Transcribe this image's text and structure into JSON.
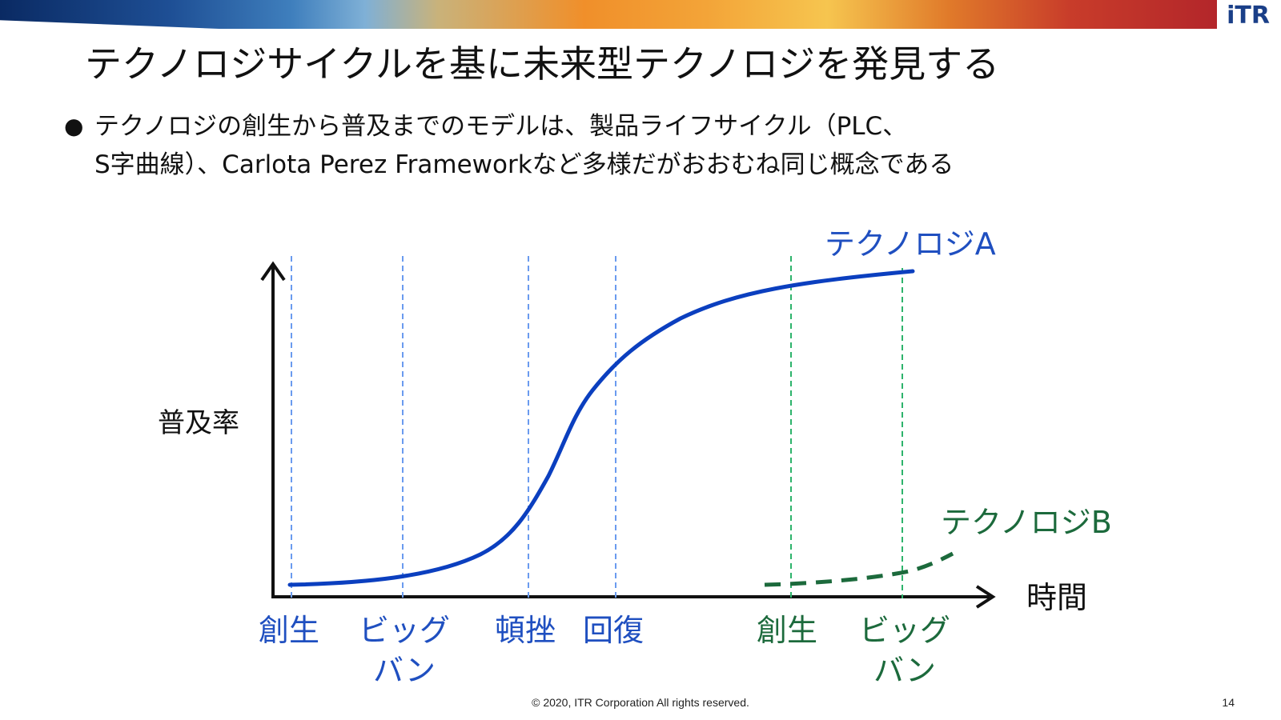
{
  "slide": {
    "title": "テクノロジサイクルを基に未来型テクノロジを発見する",
    "bullet_line1": "テクノロジの創生から普及までのモデルは、製品ライフサイクル（PLC、",
    "bullet_line2": "S字曲線）、Carlota Perez Frameworkなど多様だがおおむね同じ概念である",
    "logo": "iTR",
    "footer": "© 2020, ITR Corporation All rights reserved.",
    "page_number": "14"
  },
  "diagram": {
    "y_axis_label": "普及率",
    "x_axis_label": "時間",
    "curve_a_label": "テクノロジA",
    "curve_b_label": "テクノロジB",
    "colors": {
      "blue": "#0b3fbf",
      "blue_guides": "#6a9bef",
      "green": "#1c6a3c",
      "green_guides": "#2db36b"
    },
    "phases_a": [
      {
        "line1": "創生",
        "line2": ""
      },
      {
        "line1": "ビッグ",
        "line2": "バン"
      },
      {
        "line1": "頓挫",
        "line2": ""
      },
      {
        "line1": "回復",
        "line2": ""
      }
    ],
    "phases_b": [
      {
        "line1": "創生",
        "line2": ""
      },
      {
        "line1": "ビッグ",
        "line2": "バン"
      }
    ]
  }
}
